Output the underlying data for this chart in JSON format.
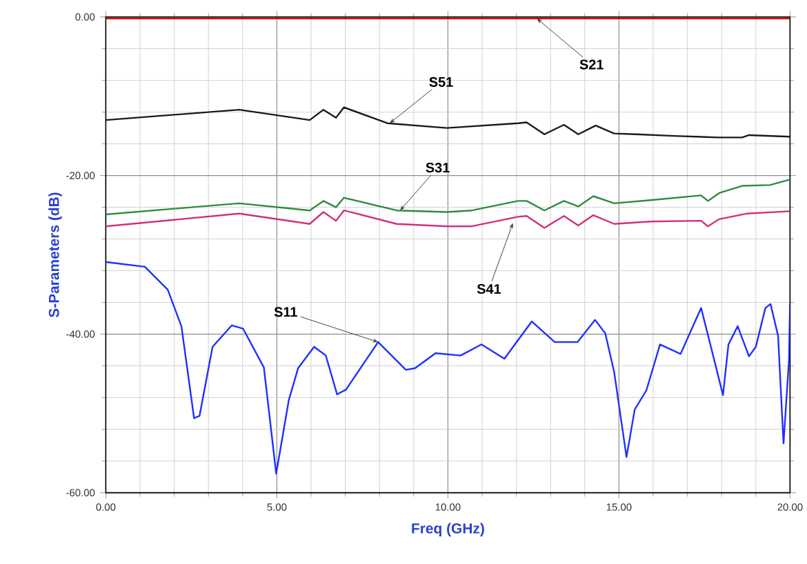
{
  "chart_data": {
    "type": "line",
    "xlabel": "Freq (GHz)",
    "ylabel": "S-Parameters (dB)",
    "xlim": [
      0,
      20
    ],
    "ylim": [
      -60,
      0
    ],
    "xticks": [
      {
        "value": 0,
        "label": "0.00"
      },
      {
        "value": 5,
        "label": "5.00"
      },
      {
        "value": 10,
        "label": "10.00"
      },
      {
        "value": 15,
        "label": "15.00"
      },
      {
        "value": 20,
        "label": "20.00"
      }
    ],
    "yticks": [
      {
        "value": -60,
        "label": "-60.00"
      },
      {
        "value": -40,
        "label": "-40.00"
      },
      {
        "value": -20,
        "label": "-20.00"
      },
      {
        "value": 0,
        "label": "0.00"
      }
    ],
    "grid": true,
    "marker": "none",
    "line_style": "solid",
    "series": [
      {
        "color": "#e00000",
        "x": [
          0,
          5,
          10,
          15,
          20
        ],
        "values": [
          -0.2,
          -0.2,
          -0.2,
          -0.2,
          -0.2
        ]
      },
      {
        "color": "#1a1a1a",
        "x": [
          0,
          3.9,
          5.96,
          6.36,
          6.73,
          6.96,
          8.23,
          9.97,
          12.05,
          12.3,
          12.82,
          13.39,
          13.81,
          14.32,
          14.86,
          15.5,
          16.6,
          17.93,
          18.6,
          18.8,
          20
        ],
        "values": [
          -13.0,
          -11.7,
          -13.0,
          -11.7,
          -12.7,
          -11.4,
          -13.4,
          -14.0,
          -13.4,
          -13.3,
          -14.8,
          -13.6,
          -14.8,
          -13.7,
          -14.7,
          -14.8,
          -15.0,
          -15.2,
          -15.2,
          -14.9,
          -15.1
        ]
      },
      {
        "color": "#2e8b3e",
        "x": [
          0,
          3.9,
          5.96,
          6.36,
          6.73,
          6.96,
          8.5,
          9.97,
          10.7,
          12.05,
          12.3,
          12.82,
          13.39,
          13.81,
          14.25,
          14.86,
          15.93,
          17.4,
          17.6,
          17.93,
          18.6,
          19.41,
          20
        ],
        "values": [
          -24.9,
          -23.5,
          -24.4,
          -23.2,
          -24.0,
          -22.8,
          -24.4,
          -24.6,
          -24.4,
          -23.2,
          -23.2,
          -24.4,
          -23.2,
          -23.9,
          -22.6,
          -23.5,
          -23.1,
          -22.5,
          -23.2,
          -22.2,
          -21.3,
          -21.2,
          -20.5
        ]
      },
      {
        "color": "#d0307a",
        "x": [
          0,
          3.9,
          5.96,
          6.36,
          6.73,
          6.96,
          8.5,
          9.97,
          10.7,
          12.05,
          12.3,
          12.82,
          13.39,
          13.81,
          14.25,
          14.86,
          15.93,
          17.4,
          17.6,
          17.93,
          18.73,
          20
        ],
        "values": [
          -26.4,
          -24.8,
          -26.1,
          -24.6,
          -25.7,
          -24.4,
          -26.1,
          -26.4,
          -26.4,
          -25.2,
          -25.1,
          -26.6,
          -25.1,
          -26.3,
          -25.0,
          -26.1,
          -25.8,
          -25.7,
          -26.4,
          -25.5,
          -24.8,
          -24.5
        ]
      },
      {
        "color": "#1f2fff",
        "x": [
          0,
          1.14,
          1.81,
          2.21,
          2.58,
          2.74,
          3.12,
          3.68,
          4.01,
          4.62,
          4.98,
          5.35,
          5.62,
          6.09,
          6.43,
          6.76,
          7.02,
          7.96,
          8.77,
          9.04,
          9.64,
          10.37,
          10.98,
          11.65,
          12.45,
          13.12,
          13.79,
          14.3,
          14.6,
          14.86,
          15.22,
          15.46,
          15.8,
          16.2,
          16.8,
          17.4,
          17.74,
          18.04,
          18.2,
          18.47,
          18.8,
          19.0,
          19.28,
          19.43,
          19.65,
          19.81,
          19.97,
          20
        ],
        "values": [
          -30.9,
          -31.5,
          -34.4,
          -39.0,
          -50.6,
          -50.3,
          -41.6,
          -38.9,
          -39.3,
          -44.2,
          -57.6,
          -48.3,
          -44.3,
          -41.6,
          -42.7,
          -47.6,
          -47.0,
          -41.0,
          -44.5,
          -44.3,
          -42.4,
          -42.7,
          -41.3,
          -43.1,
          -38.4,
          -41.0,
          -41.0,
          -38.2,
          -39.9,
          -44.8,
          -55.5,
          -49.5,
          -47.1,
          -41.3,
          -42.5,
          -36.7,
          -42.5,
          -47.7,
          -41.3,
          -39.0,
          -42.8,
          -41.6,
          -36.7,
          -36.2,
          -40.2,
          -53.8,
          -43.2,
          -36.2
        ]
      }
    ],
    "annotations": [
      {
        "text": "S21",
        "x": 12.6,
        "y": -0.2
      },
      {
        "text": "S51",
        "x": 8.3,
        "y": -13.4
      },
      {
        "text": "S31",
        "x": 8.6,
        "y": -24.4
      },
      {
        "text": "S41",
        "x": 11.9,
        "y": -26.0
      },
      {
        "text": "S11",
        "x": 7.96,
        "y": -41.0
      }
    ]
  }
}
